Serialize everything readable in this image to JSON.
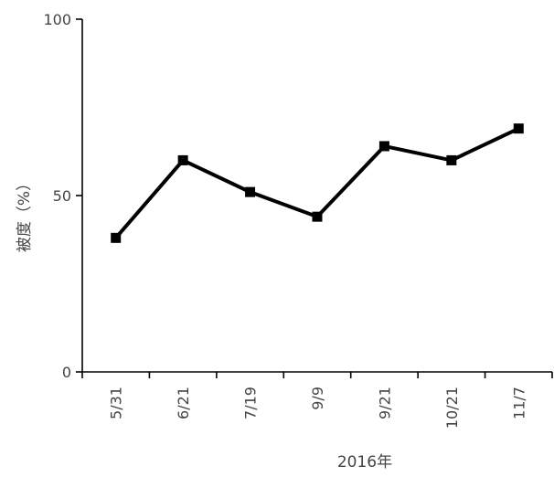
{
  "chart_data": {
    "type": "line",
    "categories": [
      "5/31",
      "6/21",
      "7/19",
      "9/9",
      "9/21",
      "10/21",
      "11/7"
    ],
    "series": [
      {
        "values": [
          38,
          60,
          51,
          44,
          64,
          60,
          69
        ]
      }
    ],
    "title": "",
    "xlabel": "2016年",
    "ylabel": "被度（%）",
    "ylim": [
      0,
      100
    ],
    "yticks": [
      0,
      50,
      100
    ],
    "grid": false,
    "legend": "none",
    "colors": {
      "line": "#000000",
      "axis": "#000000",
      "text": "#444444"
    },
    "marker": "square"
  }
}
